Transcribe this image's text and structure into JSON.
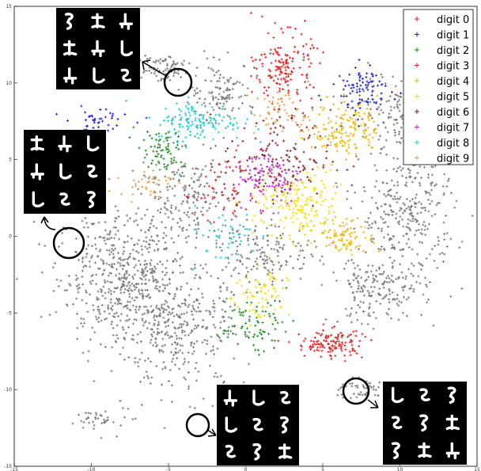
{
  "chart_data": {
    "type": "scatter",
    "title": "",
    "xlabel": "",
    "ylabel": "",
    "xlim": [
      -15,
      15
    ],
    "ylim": [
      -15,
      15
    ],
    "x_ticks": [
      "-15",
      "-10",
      "-5",
      "0",
      "5",
      "10",
      "15"
    ],
    "y_ticks": [
      "15",
      "10",
      "5",
      "0",
      "-5",
      "-10",
      "-15"
    ],
    "grid": false,
    "marker": "+",
    "legend_position": "top-right",
    "legend": [
      {
        "label": "digit 0",
        "color": "#e02020"
      },
      {
        "label": "digit 1",
        "color": "#1a1ae0"
      },
      {
        "label": "digit 2",
        "color": "#1a8a1a"
      },
      {
        "label": "digit 3",
        "color": "#e02020"
      },
      {
        "label": "digit 4",
        "color": "#f0b400"
      },
      {
        "label": "digit 5",
        "color": "#f0e000"
      },
      {
        "label": "digit 6",
        "color": "#8b1a1a"
      },
      {
        "label": "digit 7",
        "color": "#c020d0"
      },
      {
        "label": "digit 8",
        "color": "#20c8d0"
      },
      {
        "label": "digit 9",
        "color": "#e8a050"
      }
    ],
    "unlabeled_color": "#777777",
    "clusters": [
      {
        "series": "digit 0",
        "cx": 2.5,
        "cy": 11.0,
        "sx": 1.3,
        "sy": 1.6,
        "n": 160
      },
      {
        "series": "digit 0",
        "cx": 5.5,
        "cy": -7.0,
        "sx": 1.6,
        "sy": 0.7,
        "n": 130
      },
      {
        "series": "digit 1",
        "cx": 7.5,
        "cy": 9.5,
        "sx": 1.4,
        "sy": 1.2,
        "n": 90
      },
      {
        "series": "digit 1",
        "cx": -9.5,
        "cy": 7.6,
        "sx": 1.6,
        "sy": 0.5,
        "n": 40
      },
      {
        "series": "digit 2",
        "cx": -5.5,
        "cy": 5.5,
        "sx": 1.2,
        "sy": 1.0,
        "n": 70
      },
      {
        "series": "digit 2",
        "cx": 0.5,
        "cy": -5.5,
        "sx": 1.5,
        "sy": 1.4,
        "n": 80
      },
      {
        "series": "digit 3",
        "cx": -1.5,
        "cy": 3.0,
        "sx": 1.4,
        "sy": 1.8,
        "n": 60
      },
      {
        "series": "digit 4",
        "cx": 6.5,
        "cy": 7.0,
        "sx": 1.5,
        "sy": 1.3,
        "n": 150
      },
      {
        "series": "digit 4",
        "cx": 6.5,
        "cy": 0.0,
        "sx": 1.3,
        "sy": 0.8,
        "n": 90
      },
      {
        "series": "digit 5",
        "cx": 3.5,
        "cy": 2.0,
        "sx": 2.0,
        "sy": 1.5,
        "n": 170
      },
      {
        "series": "digit 5",
        "cx": 1.0,
        "cy": -4.0,
        "sx": 1.2,
        "sy": 1.5,
        "n": 70
      },
      {
        "series": "digit 6",
        "cx": 2.0,
        "cy": 5.0,
        "sx": 2.5,
        "sy": 2.3,
        "n": 150
      },
      {
        "series": "digit 7",
        "cx": 1.5,
        "cy": 4.0,
        "sx": 1.5,
        "sy": 1.4,
        "n": 110
      },
      {
        "series": "digit 8",
        "cx": -3.0,
        "cy": 7.5,
        "sx": 2.0,
        "sy": 0.9,
        "n": 140
      },
      {
        "series": "digit 8",
        "cx": -1.5,
        "cy": 0.0,
        "sx": 1.8,
        "sy": 1.3,
        "n": 50
      },
      {
        "series": "digit 9",
        "cx": -6.5,
        "cy": 3.5,
        "sx": 1.2,
        "sy": 0.6,
        "n": 35
      },
      {
        "series": "digit 9",
        "cx": 2.5,
        "cy": 8.0,
        "sx": 1.4,
        "sy": 1.1,
        "n": 60
      },
      {
        "series": "unlabeled",
        "cx": -8.0,
        "cy": -2.5,
        "sx": 3.0,
        "sy": 3.0,
        "n": 520
      },
      {
        "series": "unlabeled",
        "cx": -4.5,
        "cy": -6.0,
        "sx": 3.2,
        "sy": 2.8,
        "n": 380
      },
      {
        "series": "unlabeled",
        "cx": -1.5,
        "cy": 9.5,
        "sx": 1.5,
        "sy": 1.3,
        "n": 110
      },
      {
        "series": "unlabeled",
        "cx": 10.5,
        "cy": 1.5,
        "sx": 2.2,
        "sy": 3.2,
        "n": 330
      },
      {
        "series": "unlabeled",
        "cx": 8.5,
        "cy": -3.5,
        "sx": 2.2,
        "sy": 1.6,
        "n": 180
      },
      {
        "series": "unlabeled",
        "cx": 1.5,
        "cy": -1.0,
        "sx": 2.2,
        "sy": 1.4,
        "n": 150
      },
      {
        "series": "unlabeled",
        "cx": -4.0,
        "cy": 2.5,
        "sx": 2.0,
        "sy": 2.0,
        "n": 170
      },
      {
        "series": "unlabeled",
        "cx": 9.5,
        "cy": 8.5,
        "sx": 2.0,
        "sy": 1.7,
        "n": 120
      },
      {
        "series": "unlabeled",
        "cx": -5.5,
        "cy": 11.0,
        "sx": 1.3,
        "sy": 0.7,
        "n": 80
      },
      {
        "series": "unlabeled",
        "cx": 7.5,
        "cy": -10.0,
        "sx": 1.2,
        "sy": 0.5,
        "n": 50
      },
      {
        "series": "unlabeled",
        "cx": -9.0,
        "cy": -12.0,
        "sx": 1.5,
        "sy": 0.6,
        "n": 40
      }
    ],
    "insets": [
      {
        "label": "top-left-inset",
        "circle": [
          -3.5,
          10.0
        ],
        "count": 9
      },
      {
        "label": "left-inset",
        "circle": [
          -11.5,
          -0.5
        ],
        "count": 9
      },
      {
        "label": "bottom-center-inset",
        "circle": [
          -3.0,
          -12.3
        ],
        "count": 9
      },
      {
        "label": "bottom-right-inset",
        "circle": [
          7.0,
          -10.0
        ],
        "count": 9
      }
    ]
  }
}
